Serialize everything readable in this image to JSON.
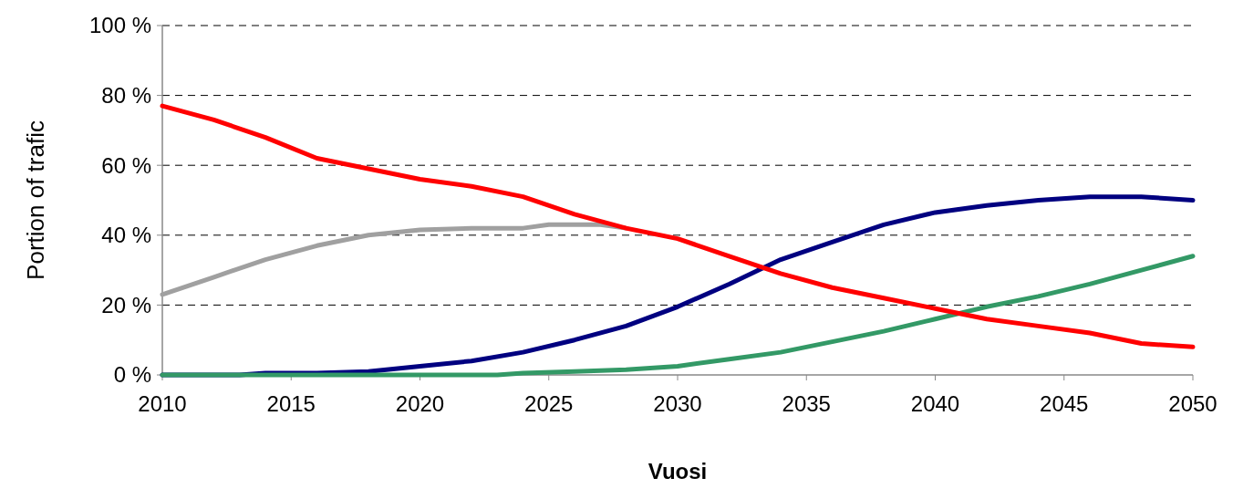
{
  "chart_data": {
    "type": "line",
    "xlabel": "Vuosi",
    "ylabel": "Portion of trafic",
    "xlim": [
      2010,
      2050
    ],
    "xticks": [
      2010,
      2015,
      2020,
      2025,
      2030,
      2035,
      2040,
      2045,
      2050
    ],
    "ylim": [
      0,
      100
    ],
    "yticks": [
      {
        "value": 0,
        "label": "0 %"
      },
      {
        "value": 20,
        "label": "20 %"
      },
      {
        "value": 40,
        "label": "40 %"
      },
      {
        "value": 60,
        "label": "60 %"
      },
      {
        "value": 80,
        "label": "80 %"
      },
      {
        "value": 100,
        "label": "100 %"
      }
    ],
    "grid": "y",
    "line_style": "solid",
    "marker": "none",
    "series": [
      {
        "color": "#a0a0a0",
        "x": [
          2010,
          2012,
          2014,
          2016,
          2018,
          2020,
          2022,
          2024,
          2025,
          2027,
          2028
        ],
        "values": [
          23,
          28,
          33,
          37,
          40,
          41.5,
          42,
          42,
          43,
          43,
          42
        ]
      },
      {
        "color": "#000080",
        "x": [
          2010,
          2013,
          2014,
          2016,
          2018,
          2020,
          2022,
          2024,
          2026,
          2028,
          2030,
          2032,
          2034,
          2036,
          2038,
          2040,
          2042,
          2044,
          2046,
          2048,
          2050
        ],
        "values": [
          0,
          0,
          0.5,
          0.5,
          1,
          2.5,
          4,
          6.5,
          10,
          14,
          19.5,
          26,
          33,
          38,
          43,
          46.5,
          48.5,
          50,
          51,
          51,
          50
        ]
      },
      {
        "color": "#339966",
        "x": [
          2010,
          2023,
          2024,
          2026,
          2028,
          2030,
          2032,
          2034,
          2036,
          2038,
          2040,
          2042,
          2044,
          2046,
          2048,
          2050
        ],
        "values": [
          0,
          0,
          0.5,
          1,
          1.5,
          2.5,
          4.5,
          6.5,
          9.5,
          12.5,
          16,
          19.5,
          22.5,
          26,
          30,
          34
        ]
      },
      {
        "color": "#ff0000",
        "x": [
          2010,
          2012,
          2014,
          2016,
          2018,
          2020,
          2022,
          2024,
          2026,
          2028,
          2030,
          2032,
          2034,
          2036,
          2038,
          2040,
          2042,
          2044,
          2046,
          2048,
          2050
        ],
        "values": [
          77,
          73,
          68,
          62,
          59,
          56,
          54,
          51,
          46,
          42,
          39,
          34,
          29,
          25,
          22,
          19,
          16,
          14,
          12,
          9,
          8
        ]
      }
    ]
  }
}
